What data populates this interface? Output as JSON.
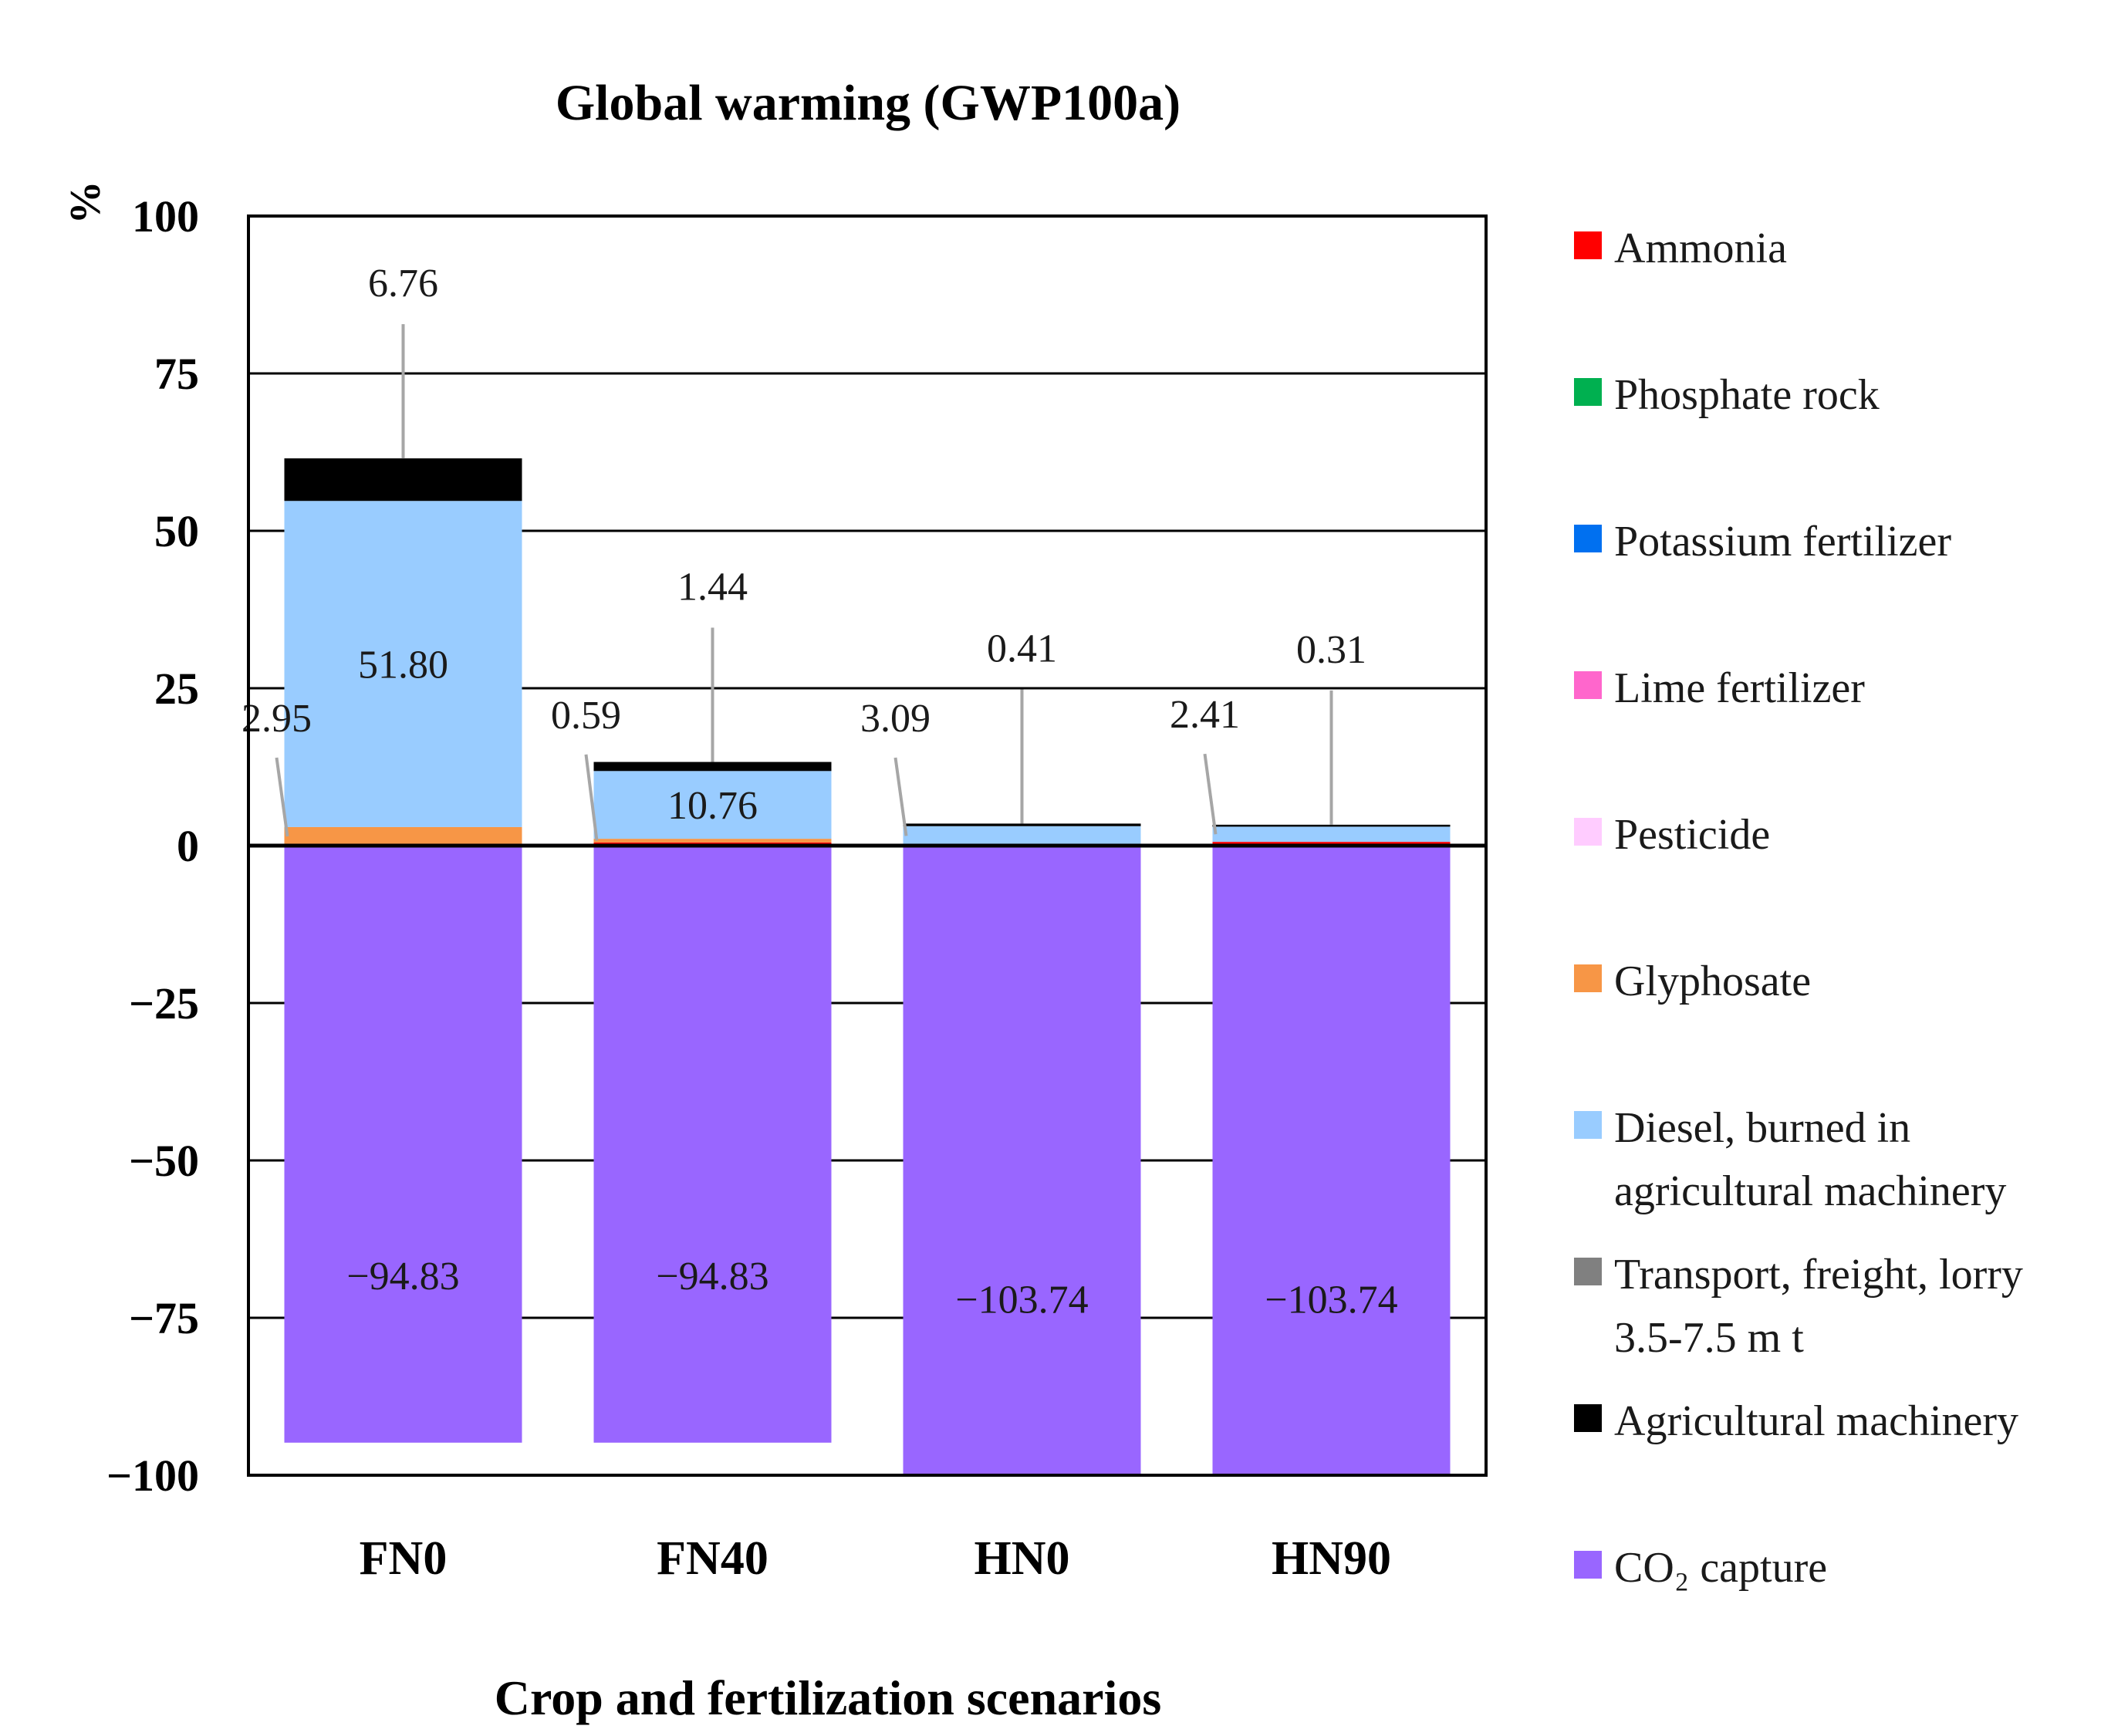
{
  "chart_data": {
    "type": "bar",
    "stacked": true,
    "title": "Global warming (GWP100a)",
    "xlabel": "Crop and fertilization scenarios",
    "ylabel": "%",
    "ylim": [
      -100,
      100
    ],
    "yticks": [
      100,
      75,
      50,
      25,
      0,
      -25,
      -50,
      -75,
      -100
    ],
    "ytick_labels": [
      "100",
      "75",
      "50",
      "25",
      "0",
      "−25",
      "−50",
      "−75",
      "−100"
    ],
    "categories": [
      "FN0",
      "FN40",
      "HN0",
      "HN90"
    ],
    "grid": true,
    "legend_position": "right",
    "series": [
      {
        "name": "Ammonia",
        "color": "#ff0000",
        "values": [
          0,
          0.5,
          0,
          0.6
        ]
      },
      {
        "name": "Phosphate rock",
        "color": "#00b050",
        "values": [
          0,
          0,
          0,
          0
        ]
      },
      {
        "name": "Potassium fertilizer",
        "color": "#0070f0",
        "values": [
          0,
          0,
          0,
          0
        ]
      },
      {
        "name": "Lime fertilizer",
        "color": "#ff66cc",
        "values": [
          0,
          0,
          0,
          0
        ]
      },
      {
        "name": "Pesticide",
        "color": "#ffccff",
        "values": [
          0,
          0,
          0,
          0
        ]
      },
      {
        "name": "Glyphosate",
        "color": "#f79646",
        "values": [
          2.95,
          0.59,
          0,
          0
        ]
      },
      {
        "name": "Diesel, burned in agricultural machinery",
        "color": "#99ccff",
        "values": [
          51.8,
          10.76,
          3.09,
          2.41
        ]
      },
      {
        "name": "Transport, freight, lorry 3.5-7.5 m t",
        "color": "#808080",
        "values": [
          0,
          0,
          0,
          0
        ]
      },
      {
        "name": "Agricultural machinery",
        "color": "#000000",
        "values": [
          6.76,
          1.44,
          0.41,
          0.31
        ]
      },
      {
        "name": "CO2 capture",
        "color": "#9966ff",
        "values": [
          -94.83,
          -94.83,
          -103.74,
          -103.74
        ]
      }
    ],
    "legend": [
      {
        "lines": [
          "Ammonia"
        ],
        "color": "#ff0000"
      },
      {
        "lines": [
          "Phosphate rock"
        ],
        "color": "#00b050"
      },
      {
        "lines": [
          "Potassium fertilizer"
        ],
        "color": "#0070f0"
      },
      {
        "lines": [
          "Lime fertilizer"
        ],
        "color": "#ff66cc"
      },
      {
        "lines": [
          "Pesticide"
        ],
        "color": "#ffccff"
      },
      {
        "lines": [
          "Glyphosate"
        ],
        "color": "#f79646"
      },
      {
        "lines": [
          "Diesel, burned in",
          "agricultural machinery"
        ],
        "color": "#99ccff"
      },
      {
        "lines": [
          "Transport, freight, lorry",
          "3.5-7.5 m t"
        ],
        "color": "#808080"
      },
      {
        "lines": [
          "Agricultural machinery"
        ],
        "color": "#000000"
      },
      {
        "lines": [
          "CO₂ capture"
        ],
        "color": "#9966ff"
      }
    ],
    "data_labels": [
      {
        "category": "FN0",
        "series": "Agricultural machinery",
        "text": "6.76"
      },
      {
        "category": "FN0",
        "series": "Diesel, burned in agricultural machinery",
        "text": "51.80"
      },
      {
        "category": "FN0",
        "series": "Glyphosate",
        "text": "2.95"
      },
      {
        "category": "FN0",
        "series": "CO2 capture",
        "text": "−94.83"
      },
      {
        "category": "FN40",
        "series": "Agricultural machinery",
        "text": "1.44"
      },
      {
        "category": "FN40",
        "series": "Diesel, burned in agricultural machinery",
        "text": "10.76"
      },
      {
        "category": "FN40",
        "series": "Glyphosate",
        "text": "0.59"
      },
      {
        "category": "FN40",
        "series": "CO2 capture",
        "text": "−94.83"
      },
      {
        "category": "HN0",
        "series": "Agricultural machinery",
        "text": "0.41"
      },
      {
        "category": "HN0",
        "series": "Diesel, burned in agricultural machinery",
        "text": "3.09"
      },
      {
        "category": "HN0",
        "series": "CO2 capture",
        "text": "−103.74"
      },
      {
        "category": "HN90",
        "series": "Agricultural machinery",
        "text": "0.31"
      },
      {
        "category": "HN90",
        "series": "Diesel, burned in agricultural machinery",
        "text": "2.41"
      },
      {
        "category": "HN90",
        "series": "CO2 capture",
        "text": "−103.74"
      }
    ]
  }
}
